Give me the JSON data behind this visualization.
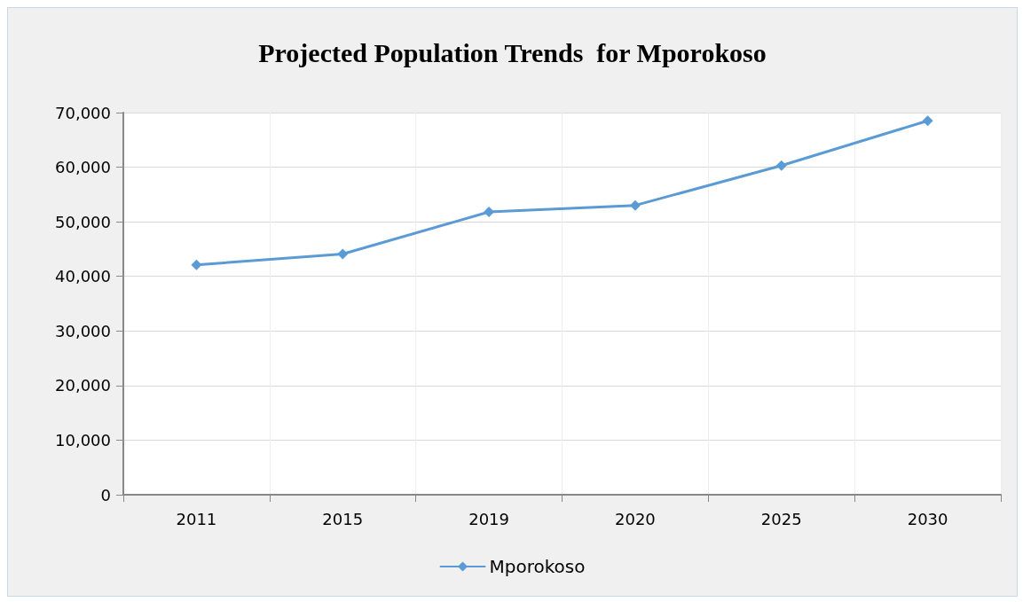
{
  "chart_data": {
    "type": "line",
    "title": "Projected Population Trends  for Mporokoso",
    "categories": [
      "2011",
      "2015",
      "2019",
      "2020",
      "2025",
      "2030"
    ],
    "series": [
      {
        "name": "Mporokoso",
        "color": "#5b9bd5",
        "values": [
          42100,
          44100,
          51800,
          53000,
          60300,
          68500
        ]
      }
    ],
    "ylim": [
      0,
      70000
    ],
    "yticks": [
      {
        "value": 0,
        "label": "0"
      },
      {
        "value": 10000,
        "label": "10,000"
      },
      {
        "value": 20000,
        "label": "20,000"
      },
      {
        "value": 30000,
        "label": "30,000"
      },
      {
        "value": 40000,
        "label": "40,000"
      },
      {
        "value": 50000,
        "label": "50,000"
      },
      {
        "value": 60000,
        "label": "60,000"
      },
      {
        "value": 70000,
        "label": "70,000"
      }
    ],
    "grid": true,
    "legend": "bottom",
    "marker": "diamond"
  }
}
